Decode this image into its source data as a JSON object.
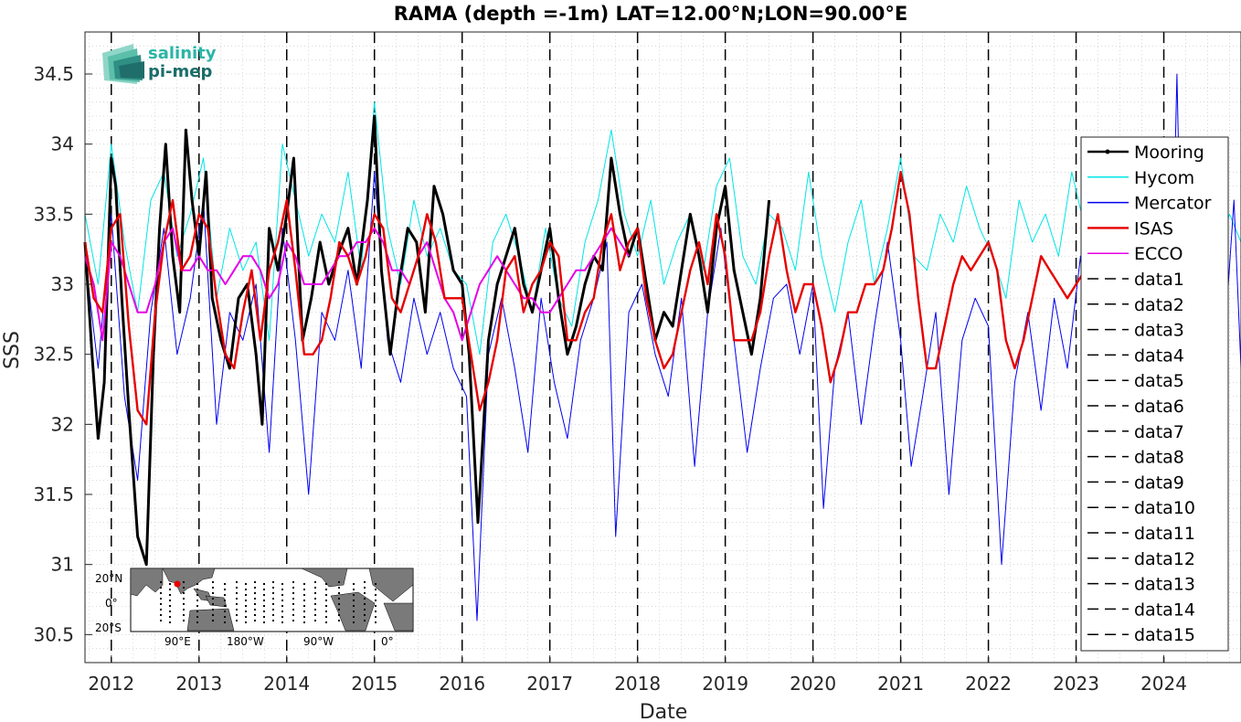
{
  "chart_data": {
    "type": "line",
    "title": "RAMA (depth =-1m) LAT=12.00°N;LON=90.00°E",
    "xlabel": "Date",
    "ylabel": "SSS",
    "xlim": [
      2011.7,
      2024.88
    ],
    "ylim": [
      30.3,
      34.8
    ],
    "grid": true,
    "legend_position": "right",
    "x_tick_labels": [
      "2012",
      "2013",
      "2014",
      "2015",
      "2016",
      "2017",
      "2018",
      "2019",
      "2020",
      "2021",
      "2022",
      "2023",
      "2024"
    ],
    "x_ticks": [
      2012,
      2013,
      2014,
      2015,
      2016,
      2017,
      2018,
      2019,
      2020,
      2021,
      2022,
      2023,
      2024
    ],
    "y_tick_labels": [
      "30.5",
      "31",
      "31.5",
      "32",
      "32.5",
      "33",
      "33.5",
      "34",
      "34.5"
    ],
    "y_ticks": [
      30.5,
      31,
      31.5,
      32,
      32.5,
      33,
      33.5,
      34,
      34.5
    ],
    "vertical_lines": [
      2012,
      2013,
      2014,
      2015,
      2016,
      2017,
      2018,
      2019,
      2020,
      2021,
      2022,
      2023,
      2024
    ],
    "series": [
      {
        "name": "Mooring",
        "color": "#000000",
        "width": 3,
        "x": [
          2011.7,
          2011.78,
          2011.85,
          2011.92,
          2012.0,
          2012.05,
          2012.12,
          2012.2,
          2012.3,
          2012.4,
          2012.48,
          2012.55,
          2012.62,
          2012.7,
          2012.78,
          2012.85,
          2012.92,
          2013.0,
          2013.08,
          2013.15,
          2013.25,
          2013.35,
          2013.45,
          2013.55,
          2013.65,
          2013.72,
          2013.8,
          2013.9,
          2014.0,
          2014.08,
          2014.18,
          2014.28,
          2014.38,
          2014.48,
          2014.58,
          2014.7,
          2014.8,
          2014.92,
          2015.0,
          2015.08,
          2015.18,
          2015.28,
          2015.38,
          2015.48,
          2015.58,
          2015.68,
          2015.78,
          2015.9,
          2016.0,
          2016.08,
          2016.18,
          2016.2,
          2016.3,
          2016.4,
          2016.5,
          2016.6,
          2016.7,
          2016.8,
          2016.9,
          2017.0,
          2017.1,
          2017.2,
          2017.3,
          2017.4,
          2017.5,
          2017.6,
          2017.7,
          2017.8,
          2017.9,
          2018.0,
          2018.1,
          2018.2,
          2018.3,
          2018.4,
          2018.5,
          2018.6,
          2018.7,
          2018.8,
          2018.9,
          2019.0,
          2019.1,
          2019.2,
          2019.3,
          2019.4,
          2019.5
        ],
        "y": [
          33.3,
          32.5,
          31.9,
          32.3,
          33.9,
          33.7,
          32.9,
          32.1,
          31.2,
          31.0,
          32.5,
          33.4,
          34.0,
          33.2,
          32.8,
          34.1,
          33.6,
          33.2,
          33.8,
          32.9,
          32.6,
          32.4,
          32.9,
          33.0,
          32.5,
          32.0,
          33.4,
          33.1,
          33.5,
          33.9,
          32.6,
          32.9,
          33.3,
          33.0,
          33.2,
          33.4,
          33.0,
          33.6,
          34.2,
          33.1,
          32.5,
          33.0,
          33.4,
          33.3,
          32.8,
          33.7,
          33.5,
          33.1,
          33.0,
          32.5,
          31.3,
          31.5,
          32.6,
          33.0,
          33.2,
          33.4,
          33.0,
          32.8,
          33.1,
          33.4,
          32.9,
          32.5,
          32.7,
          33.0,
          33.2,
          33.1,
          33.9,
          33.5,
          33.2,
          33.4,
          33.0,
          32.6,
          32.8,
          32.7,
          33.1,
          33.5,
          33.2,
          32.8,
          33.4,
          33.7,
          33.1,
          32.8,
          32.5,
          32.9,
          33.6
        ]
      },
      {
        "name": "Hycom",
        "color": "#00e5e5",
        "width": 1,
        "x": [
          2011.7,
          2011.85,
          2012.0,
          2012.15,
          2012.3,
          2012.45,
          2012.6,
          2012.75,
          2012.9,
          2013.05,
          2013.2,
          2013.35,
          2013.5,
          2013.65,
          2013.8,
          2013.95,
          2014.1,
          2014.25,
          2014.4,
          2014.55,
          2014.7,
          2014.85,
          2015.0,
          2015.15,
          2015.3,
          2015.45,
          2015.6,
          2015.75,
          2015.9,
          2016.05,
          2016.2,
          2016.35,
          2016.5,
          2016.65,
          2016.8,
          2016.95,
          2017.1,
          2017.25,
          2017.4,
          2017.55,
          2017.7,
          2017.85,
          2018.0,
          2018.15,
          2018.3,
          2018.45,
          2018.6,
          2018.75,
          2018.9,
          2019.05,
          2019.2,
          2019.35,
          2019.5,
          2019.65,
          2019.8,
          2019.95,
          2020.1,
          2020.25,
          2020.4,
          2020.55,
          2020.7,
          2020.85,
          2021.0,
          2021.15,
          2021.3,
          2021.45,
          2021.6,
          2021.75,
          2021.9,
          2022.05,
          2022.2,
          2022.35,
          2022.5,
          2022.65,
          2022.8,
          2022.95,
          2023.1,
          2023.25,
          2023.4,
          2023.55,
          2023.7,
          2023.85,
          2024.0,
          2024.15,
          2024.3,
          2024.45,
          2024.6,
          2024.75,
          2024.88
        ],
        "y": [
          33.5,
          33.0,
          34.0,
          33.3,
          32.8,
          33.6,
          33.8,
          33.2,
          33.5,
          33.9,
          32.9,
          33.4,
          33.1,
          33.3,
          32.6,
          34.0,
          33.6,
          33.2,
          33.5,
          33.3,
          33.8,
          33.1,
          34.3,
          33.4,
          33.0,
          33.6,
          33.2,
          33.4,
          33.1,
          33.0,
          32.5,
          33.3,
          33.5,
          33.2,
          32.8,
          33.4,
          32.9,
          32.7,
          33.3,
          33.6,
          34.1,
          33.5,
          33.2,
          33.6,
          33.0,
          33.3,
          33.5,
          33.1,
          33.7,
          33.9,
          33.2,
          33.0,
          33.5,
          33.4,
          33.1,
          33.8,
          33.2,
          32.8,
          33.3,
          33.6,
          33.0,
          33.4,
          33.9,
          33.2,
          33.1,
          33.5,
          33.3,
          33.7,
          33.4,
          33.2,
          32.9,
          33.6,
          33.3,
          33.5,
          33.2,
          33.8,
          33.4,
          33.1,
          33.6,
          33.3,
          33.5,
          33.2,
          33.7,
          33.4,
          33.3,
          33.6,
          33.2,
          33.5,
          33.3
        ]
      },
      {
        "name": "Mercator",
        "color": "#0000ee",
        "width": 1,
        "x": [
          2011.7,
          2011.85,
          2012.0,
          2012.15,
          2012.3,
          2012.45,
          2012.6,
          2012.75,
          2012.9,
          2013.05,
          2013.2,
          2013.35,
          2013.5,
          2013.65,
          2013.8,
          2013.95,
          2014.1,
          2014.25,
          2014.4,
          2014.55,
          2014.7,
          2014.85,
          2015.0,
          2015.15,
          2015.3,
          2015.45,
          2015.6,
          2015.75,
          2015.9,
          2016.05,
          2016.17,
          2016.3,
          2016.45,
          2016.6,
          2016.75,
          2016.9,
          2017.05,
          2017.2,
          2017.35,
          2017.5,
          2017.65,
          2017.75,
          2017.9,
          2018.05,
          2018.2,
          2018.35,
          2018.5,
          2018.65,
          2018.8,
          2018.95,
          2019.1,
          2019.25,
          2019.4,
          2019.55,
          2019.7,
          2019.85,
          2020.0,
          2020.12,
          2020.25,
          2020.4,
          2020.55,
          2020.7,
          2020.85,
          2021.0,
          2021.12,
          2021.25,
          2021.4,
          2021.55,
          2021.7,
          2021.85,
          2022.0,
          2022.15,
          2022.3,
          2022.45,
          2022.6,
          2022.75,
          2022.9,
          2023.05,
          2023.2,
          2023.35,
          2023.5,
          2023.65,
          2023.8,
          2023.95,
          2024.1,
          2024.15,
          2024.2,
          2024.35,
          2024.5,
          2024.65,
          2024.8,
          2024.88
        ],
        "y": [
          33.2,
          32.4,
          33.5,
          32.2,
          31.6,
          32.8,
          33.4,
          32.5,
          32.9,
          33.6,
          32.0,
          32.8,
          32.6,
          33.0,
          31.8,
          33.4,
          32.6,
          31.5,
          32.8,
          32.6,
          33.1,
          32.4,
          33.8,
          32.6,
          32.3,
          32.9,
          32.5,
          32.8,
          32.4,
          32.2,
          30.6,
          32.5,
          32.9,
          32.4,
          31.8,
          32.9,
          32.3,
          31.9,
          32.6,
          32.9,
          33.3,
          31.2,
          32.8,
          33.0,
          32.5,
          32.2,
          32.9,
          31.7,
          32.8,
          33.4,
          32.6,
          31.8,
          32.4,
          32.9,
          33.0,
          32.5,
          33.0,
          31.4,
          32.4,
          32.8,
          32.0,
          32.7,
          33.3,
          32.6,
          31.7,
          32.2,
          32.8,
          31.5,
          32.6,
          32.9,
          32.7,
          31.0,
          32.3,
          32.8,
          32.1,
          32.9,
          32.4,
          33.2,
          31.8,
          32.6,
          33.0,
          32.4,
          33.2,
          32.6,
          33.1,
          34.5,
          33.0,
          32.4,
          32.9,
          32.2,
          33.6,
          32.4
        ]
      },
      {
        "name": "ISAS",
        "color": "#e60000",
        "width": 2.4,
        "x": [
          2011.7,
          2011.8,
          2011.9,
          2012.0,
          2012.1,
          2012.2,
          2012.3,
          2012.4,
          2012.5,
          2012.6,
          2012.7,
          2012.8,
          2012.9,
          2013.0,
          2013.1,
          2013.2,
          2013.3,
          2013.4,
          2013.5,
          2013.6,
          2013.7,
          2013.8,
          2013.9,
          2014.0,
          2014.1,
          2014.2,
          2014.3,
          2014.4,
          2014.5,
          2014.6,
          2014.7,
          2014.8,
          2014.9,
          2015.0,
          2015.1,
          2015.2,
          2015.3,
          2015.4,
          2015.5,
          2015.6,
          2015.7,
          2015.8,
          2015.9,
          2016.0,
          2016.1,
          2016.2,
          2016.3,
          2016.4,
          2016.5,
          2016.6,
          2016.7,
          2016.8,
          2016.9,
          2017.0,
          2017.1,
          2017.2,
          2017.3,
          2017.4,
          2017.5,
          2017.6,
          2017.7,
          2017.8,
          2017.9,
          2018.0,
          2018.1,
          2018.2,
          2018.3,
          2018.4,
          2018.5,
          2018.6,
          2018.7,
          2018.8,
          2018.9,
          2019.0,
          2019.1,
          2019.2,
          2019.3,
          2019.4,
          2019.5,
          2019.6,
          2019.7,
          2019.8,
          2019.9,
          2020.0,
          2020.1,
          2020.2,
          2020.3,
          2020.4,
          2020.5,
          2020.6,
          2020.7,
          2020.8,
          2020.9,
          2021.0,
          2021.1,
          2021.2,
          2021.3,
          2021.4,
          2021.5,
          2021.6,
          2021.7,
          2021.8,
          2021.9,
          2022.0,
          2022.1,
          2022.2,
          2022.3,
          2022.4,
          2022.5,
          2022.6,
          2022.7,
          2022.8,
          2022.9,
          2023.0,
          2023.1
        ],
        "y": [
          33.3,
          32.9,
          32.8,
          33.4,
          33.5,
          32.7,
          32.1,
          32.0,
          32.8,
          33.3,
          33.6,
          33.1,
          33.2,
          33.5,
          33.4,
          32.9,
          32.5,
          32.4,
          32.8,
          33.1,
          32.6,
          33.1,
          33.3,
          33.6,
          33.1,
          32.5,
          32.5,
          32.6,
          32.9,
          33.3,
          33.2,
          33.0,
          33.2,
          33.5,
          33.4,
          32.9,
          32.8,
          33.0,
          33.2,
          33.5,
          33.3,
          32.9,
          32.9,
          32.9,
          32.5,
          32.1,
          32.3,
          32.6,
          33.1,
          33.2,
          32.8,
          33.0,
          33.1,
          33.3,
          33.2,
          32.6,
          32.6,
          32.8,
          32.9,
          33.3,
          33.5,
          33.1,
          33.3,
          33.4,
          32.9,
          32.6,
          32.4,
          32.5,
          32.8,
          33.1,
          33.3,
          33.0,
          33.5,
          33.2,
          32.6,
          32.6,
          32.6,
          32.8,
          33.2,
          33.5,
          33.1,
          32.8,
          33.0,
          33.0,
          32.7,
          32.3,
          32.5,
          32.8,
          32.8,
          33.0,
          33.0,
          33.1,
          33.4,
          33.8,
          33.5,
          32.9,
          32.4,
          32.4,
          32.7,
          33.0,
          33.2,
          33.1,
          33.2,
          33.3,
          33.1,
          32.6,
          32.4,
          32.6,
          32.9,
          33.2,
          33.1,
          33.0,
          32.9,
          33.0,
          33.1
        ]
      },
      {
        "name": "ECCO",
        "color": "#e600e6",
        "width": 2,
        "x": [
          2011.7,
          2011.8,
          2011.9,
          2012.0,
          2012.1,
          2012.2,
          2012.3,
          2012.4,
          2012.5,
          2012.6,
          2012.7,
          2012.8,
          2012.9,
          2013.0,
          2013.1,
          2013.2,
          2013.3,
          2013.4,
          2013.5,
          2013.6,
          2013.7,
          2013.8,
          2013.9,
          2014.0,
          2014.1,
          2014.2,
          2014.3,
          2014.4,
          2014.5,
          2014.6,
          2014.7,
          2014.8,
          2014.9,
          2015.0,
          2015.1,
          2015.2,
          2015.3,
          2015.4,
          2015.5,
          2015.6,
          2015.7,
          2015.8,
          2015.9,
          2016.0,
          2016.1,
          2016.2,
          2016.3,
          2016.4,
          2016.5,
          2016.6,
          2016.7,
          2016.8,
          2016.9,
          2017.0,
          2017.1,
          2017.2,
          2017.3,
          2017.4,
          2017.5,
          2017.6,
          2017.7,
          2017.8,
          2017.9
        ],
        "y": [
          33.2,
          33.0,
          32.6,
          33.3,
          33.2,
          33.0,
          32.8,
          32.8,
          33.0,
          33.3,
          33.4,
          33.1,
          33.1,
          33.2,
          33.1,
          33.1,
          33.0,
          33.1,
          33.2,
          33.2,
          33.1,
          32.9,
          33.0,
          33.3,
          33.2,
          33.0,
          33.0,
          33.0,
          33.1,
          33.2,
          33.2,
          33.3,
          33.3,
          33.4,
          33.3,
          33.1,
          33.1,
          33.0,
          33.2,
          33.3,
          33.1,
          32.9,
          32.8,
          32.6,
          32.8,
          33.0,
          33.1,
          33.2,
          33.1,
          33.0,
          32.9,
          32.9,
          32.8,
          32.8,
          32.9,
          33.0,
          33.1,
          33.1,
          33.2,
          33.3,
          33.4,
          33.3,
          33.2
        ]
      }
    ],
    "legend_entries": [
      {
        "label": "Mooring",
        "color": "#000000",
        "style": "solid-thick-dot"
      },
      {
        "label": "Hycom",
        "color": "#00e5e5",
        "style": "solid"
      },
      {
        "label": "Mercator",
        "color": "#0000ee",
        "style": "solid"
      },
      {
        "label": "ISAS",
        "color": "#e60000",
        "style": "solid"
      },
      {
        "label": "ECCO",
        "color": "#e600e6",
        "style": "solid"
      },
      {
        "label": "data1",
        "color": "#000000",
        "style": "dashed"
      },
      {
        "label": "data2",
        "color": "#000000",
        "style": "dashed"
      },
      {
        "label": "data3",
        "color": "#000000",
        "style": "dashed"
      },
      {
        "label": "data4",
        "color": "#000000",
        "style": "dashed"
      },
      {
        "label": "data5",
        "color": "#000000",
        "style": "dashed"
      },
      {
        "label": "data6",
        "color": "#000000",
        "style": "dashed"
      },
      {
        "label": "data7",
        "color": "#000000",
        "style": "dashed"
      },
      {
        "label": "data8",
        "color": "#000000",
        "style": "dashed"
      },
      {
        "label": "data9",
        "color": "#000000",
        "style": "dashed"
      },
      {
        "label": "data10",
        "color": "#000000",
        "style": "dashed"
      },
      {
        "label": "data11",
        "color": "#000000",
        "style": "dashed"
      },
      {
        "label": "data12",
        "color": "#000000",
        "style": "dashed"
      },
      {
        "label": "data13",
        "color": "#000000",
        "style": "dashed"
      },
      {
        "label": "data14",
        "color": "#000000",
        "style": "dashed"
      },
      {
        "label": "data15",
        "color": "#000000",
        "style": "dashed"
      }
    ]
  },
  "logo": {
    "line1": "salinity",
    "line2": "pi-mep",
    "color_line1": "#2bb5a5",
    "color_line2": "#1a6d6a"
  },
  "inset_map": {
    "lat_labels": [
      "20°N",
      "0°",
      "20°S"
    ],
    "lon_labels": [
      "90°E",
      "180°W",
      "90°W",
      "0°"
    ]
  }
}
